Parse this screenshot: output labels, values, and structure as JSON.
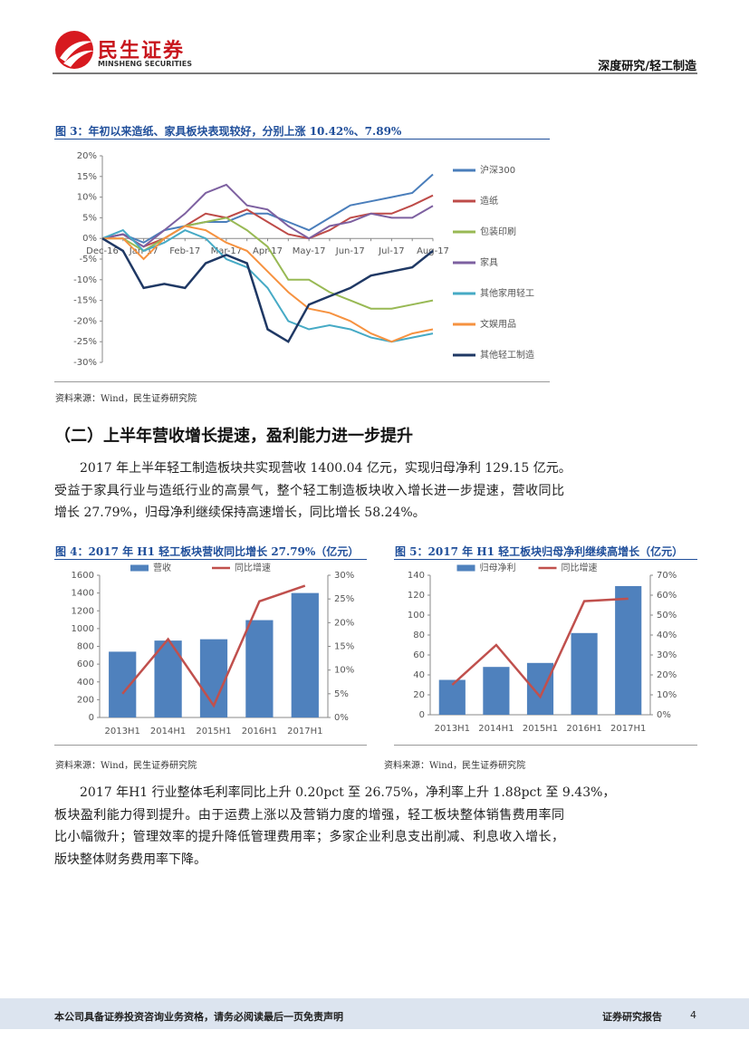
{
  "header": {
    "logo_cn": "民生证券",
    "logo_en": "MINSHENG SECURITIES",
    "category": "深度研究/轻工制造"
  },
  "chart_data": [
    {
      "type": "line",
      "title": "图 3：年初以来造纸、家具板块表现较好，分别上涨 10.42%、7.89%",
      "source": "资料来源：Wind，民生证券研究院",
      "categories": [
        "Dec-16",
        null,
        "Jan-17",
        null,
        "Feb-17",
        null,
        "Mar-17",
        null,
        "Apr-17",
        null,
        "May-17",
        null,
        "Jun-17",
        null,
        "Jul-17",
        null,
        "Aug-17"
      ],
      "ylim": [
        -30,
        20
      ],
      "yticks": [
        {
          "value": 20,
          "label": "20%"
        },
        {
          "value": 15,
          "label": "15%"
        },
        {
          "value": 10,
          "label": "10%"
        },
        {
          "value": 5,
          "label": "5%"
        },
        {
          "value": 0,
          "label": "0%"
        },
        {
          "value": -5,
          "label": "-5%"
        },
        {
          "value": -10,
          "label": "-10%"
        },
        {
          "value": -15,
          "label": "-15%"
        },
        {
          "value": -20,
          "label": "-20%"
        },
        {
          "value": -25,
          "label": "-25%"
        },
        {
          "value": -30,
          "label": "-30%"
        }
      ],
      "legend": "right",
      "series": [
        {
          "name": "沪深300",
          "color": "#4a7ebb",
          "values": [
            0,
            1,
            -1,
            2,
            3,
            4,
            4,
            6,
            6,
            4,
            2,
            5,
            8,
            9,
            10,
            11,
            15.5
          ]
        },
        {
          "name": "造纸",
          "color": "#be4b48",
          "values": [
            0,
            1,
            -2,
            0,
            3,
            6,
            5,
            7,
            4,
            1,
            0,
            2,
            5,
            6,
            6,
            8,
            10.42
          ]
        },
        {
          "name": "包装印刷",
          "color": "#98b954",
          "values": [
            0,
            0,
            -3,
            0,
            3,
            4,
            5,
            2,
            -2,
            -10,
            -10,
            -13,
            -15,
            -17,
            -17,
            -16,
            -15
          ]
        },
        {
          "name": "家具",
          "color": "#7d60a0",
          "values": [
            0,
            1,
            -2,
            2,
            6,
            11,
            13,
            8,
            7,
            3,
            0,
            3,
            4,
            6,
            5,
            5,
            7.89
          ]
        },
        {
          "name": "其他家用轻工",
          "color": "#46aac5",
          "values": [
            0,
            2,
            -3,
            -1,
            2,
            0,
            -5,
            -7,
            -12,
            -20,
            -22,
            -21,
            -22,
            -24,
            -25,
            -24,
            -23
          ]
        },
        {
          "name": "文娱用品",
          "color": "#f69240",
          "values": [
            0,
            0,
            -5,
            0,
            3,
            2,
            -1,
            -3,
            -8,
            -13,
            -17,
            -18,
            -20,
            -23,
            -25,
            -23,
            -22
          ]
        },
        {
          "name": "其他轻工制造",
          "color": "#1f3864",
          "values": [
            0,
            -3,
            -12,
            -11,
            -12,
            -6,
            -4,
            -6,
            -22,
            -25,
            -16,
            -14,
            -12,
            -9,
            -8,
            -7,
            -3
          ]
        }
      ]
    },
    {
      "type": "bar",
      "title": "图 4：2017 年 H1 轻工板块营收同比增长 27.79%（亿元）",
      "source": "资料来源：Wind，民生证券研究院",
      "categories": [
        "2013H1",
        "2014H1",
        "2015H1",
        "2016H1",
        "2017H1"
      ],
      "ylim": [
        0,
        1600
      ],
      "yticks": [
        0,
        200,
        400,
        600,
        800,
        1000,
        1200,
        1400,
        1600
      ],
      "y2lim": [
        0,
        30
      ],
      "y2ticks": [
        {
          "value": 0,
          "label": "0%"
        },
        {
          "value": 5,
          "label": "5%"
        },
        {
          "value": 10,
          "label": "10%"
        },
        {
          "value": 15,
          "label": "15%"
        },
        {
          "value": 20,
          "label": "20%"
        },
        {
          "value": 25,
          "label": "25%"
        },
        {
          "value": 30,
          "label": "30%"
        }
      ],
      "legend": "top",
      "series": [
        {
          "name": "营收",
          "color": "#4f81bd",
          "values": [
            740,
            865,
            880,
            1095,
            1400.04
          ]
        },
        {
          "name": "同比增速",
          "type": "line",
          "axis": "y2",
          "color": "#c0504d",
          "values": [
            5,
            16.5,
            2.5,
            24.5,
            27.79
          ]
        }
      ]
    },
    {
      "type": "bar",
      "title": "图 5：2017 年 H1 轻工板块归母净利继续高增长（亿元）",
      "source": "资料来源：Wind，民生证券研究院",
      "categories": [
        "2013H1",
        "2014H1",
        "2015H1",
        "2016H1",
        "2017H1"
      ],
      "ylim": [
        0,
        140
      ],
      "yticks": [
        0,
        20,
        40,
        60,
        80,
        100,
        120,
        140
      ],
      "y2lim": [
        0,
        70
      ],
      "y2ticks": [
        {
          "value": 0,
          "label": "0%"
        },
        {
          "value": 10,
          "label": "10%"
        },
        {
          "value": 20,
          "label": "20%"
        },
        {
          "value": 30,
          "label": "30%"
        },
        {
          "value": 40,
          "label": "40%"
        },
        {
          "value": 50,
          "label": "50%"
        },
        {
          "value": 60,
          "label": "60%"
        },
        {
          "value": 70,
          "label": "70%"
        }
      ],
      "legend": "top",
      "series": [
        {
          "name": "归母净利",
          "color": "#4f81bd",
          "values": [
            35,
            48,
            52,
            82,
            129.15
          ]
        },
        {
          "name": "同比增速",
          "type": "line",
          "axis": "y2",
          "color": "#c0504d",
          "values": [
            15,
            35,
            9,
            57,
            58.24
          ]
        }
      ]
    }
  ],
  "section_heading": "（二）上半年营收增长提速，盈利能力进一步提升",
  "paragraphs": [
    [
      "2017 年上半年轻工制造板块共实现营收 1400.04 亿元，实现归母净利 129.15 亿元。",
      "受益于家具行业与造纸行业的高景气，整个轻工制造板块收入增长进一步提速，营收同比",
      "增长 27.79%，归母净利继续保持高速增长，同比增长 58.24%。"
    ],
    [
      "2017 年H1 行业整体毛利率同比上升 0.20pct 至 26.75%，净利率上升 1.88pct 至 9.43%，",
      "板块盈利能力得到提升。由于运费上涨以及营销力度的增强，轻工板块整体销售费用率同",
      "比小幅微升；管理效率的提升降低管理费用率；多家企业利息支出削减、利息收入增长，",
      "版块整体财务费用率下降。"
    ]
  ],
  "footer": {
    "disclaimer": "本公司具备证券投资咨询业务资格，请务必阅读最后一页免责声明",
    "report_type": "证券研究报告",
    "page": "4"
  }
}
